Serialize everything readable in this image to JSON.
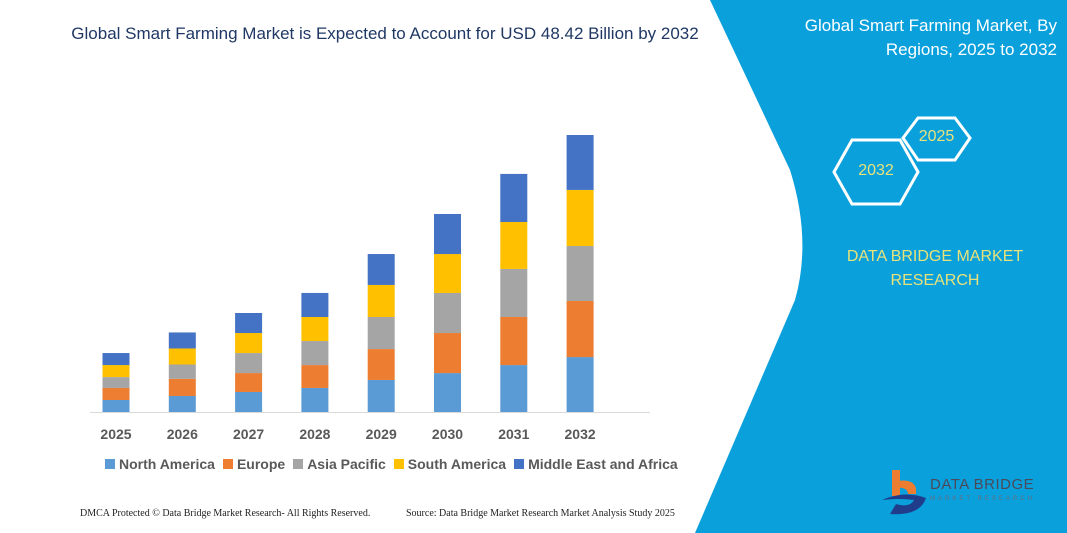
{
  "title": "Global Smart Farming Market is Expected to Account for USD 48.42 Billion by 2032",
  "side_panel": {
    "title": "Global Smart Farming Market, By Regions, 2025 to 2032",
    "hex_start": "2025",
    "hex_end": "2032",
    "brand": "DATA BRIDGE MARKET RESEARCH",
    "logo_name": "DATA BRIDGE",
    "logo_sub": "MARKET RESEARCH",
    "panel_color": "#0aa0dc",
    "text_color": "#e8e27a"
  },
  "footer": {
    "left": "DMCA Protected © Data Bridge Market Research-  All Rights Reserved.",
    "right": "Source: Data Bridge Market Research  Market Analysis Study 2025"
  },
  "chart_data": {
    "type": "bar",
    "stacked": true,
    "categories": [
      "2025",
      "2026",
      "2027",
      "2028",
      "2029",
      "2030",
      "2031",
      "2032"
    ],
    "series": [
      {
        "name": "North America",
        "color": "#5b9bd5",
        "values": [
          2.1,
          2.8,
          3.5,
          4.2,
          5.6,
          6.8,
          8.2,
          9.6
        ]
      },
      {
        "name": "Europe",
        "color": "#ed7d31",
        "values": [
          2.1,
          3.0,
          3.3,
          4.0,
          5.4,
          7.0,
          8.4,
          9.8
        ]
      },
      {
        "name": "Asia Pacific",
        "color": "#a5a5a5",
        "values": [
          1.9,
          2.5,
          3.5,
          4.2,
          5.6,
          7.0,
          8.4,
          9.6
        ]
      },
      {
        "name": "South America",
        "color": "#ffc000",
        "values": [
          2.1,
          2.8,
          3.5,
          4.2,
          5.6,
          6.8,
          8.2,
          9.8
        ]
      },
      {
        "name": "Middle East and Africa",
        "color": "#4472c4",
        "values": [
          2.1,
          2.8,
          3.5,
          4.2,
          5.4,
          7.0,
          8.4,
          9.6
        ]
      }
    ],
    "xlabel": "",
    "ylabel": "",
    "grid": false,
    "y_axis_shown": false,
    "legend_position": "bottom"
  }
}
